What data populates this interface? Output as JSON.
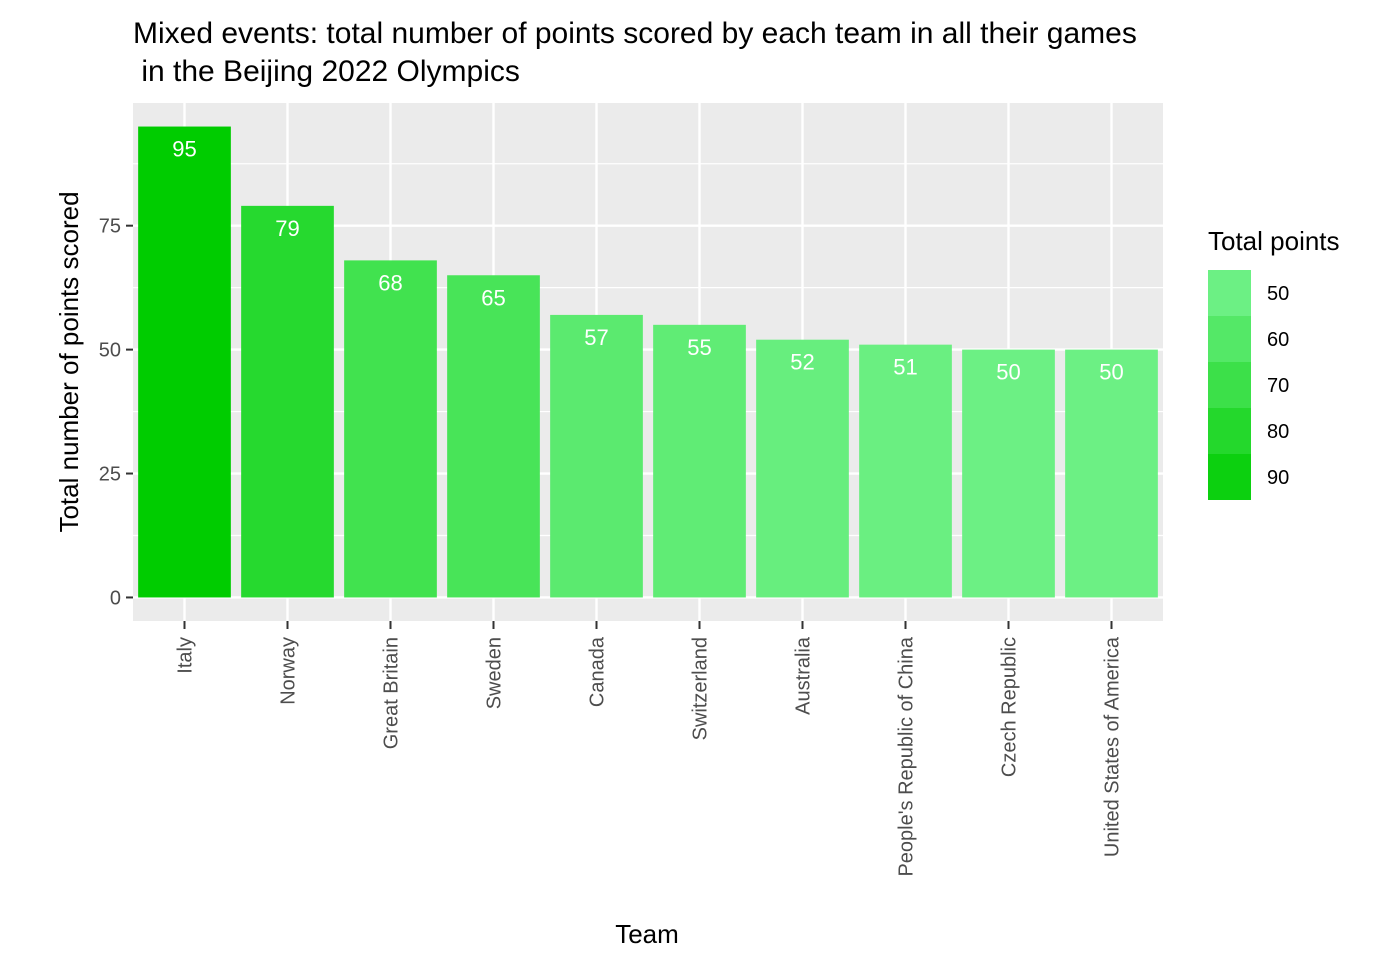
{
  "chart_data": {
    "type": "bar",
    "title_line1": "Mixed events: total number of points scored by each team in all their games",
    "title_line2": " in the Beijing 2022 Olympics",
    "xlabel": "Team",
    "ylabel": "Total number of points scored",
    "categories": [
      "Italy",
      "Norway",
      "Great Britain",
      "Sweden",
      "Canada",
      "Switzerland",
      "Australia",
      "People's Republic of China",
      "Czech Republic",
      "United States of America"
    ],
    "values": [
      95,
      79,
      68,
      65,
      57,
      55,
      52,
      51,
      50,
      50
    ],
    "ylim": [
      -4.75,
      99.75
    ],
    "yticks": [
      0,
      25,
      50,
      75
    ],
    "ytick_labels": [
      "0",
      "25",
      "50",
      "75"
    ],
    "grid": true,
    "legend": {
      "title": "Total points",
      "position": "right",
      "entries": [
        {
          "label": "50",
          "value": 50
        },
        {
          "label": "60",
          "value": 60
        },
        {
          "label": "70",
          "value": 70
        },
        {
          "label": "80",
          "value": 80
        },
        {
          "label": "90",
          "value": 90
        }
      ]
    },
    "colors": {
      "low": "#6cf084",
      "high": "#00cc00",
      "panel_background": "#ebebeb",
      "grid_major": "#ffffff",
      "bar_label": "#ffffff"
    },
    "fill_range": [
      50,
      95
    ]
  }
}
